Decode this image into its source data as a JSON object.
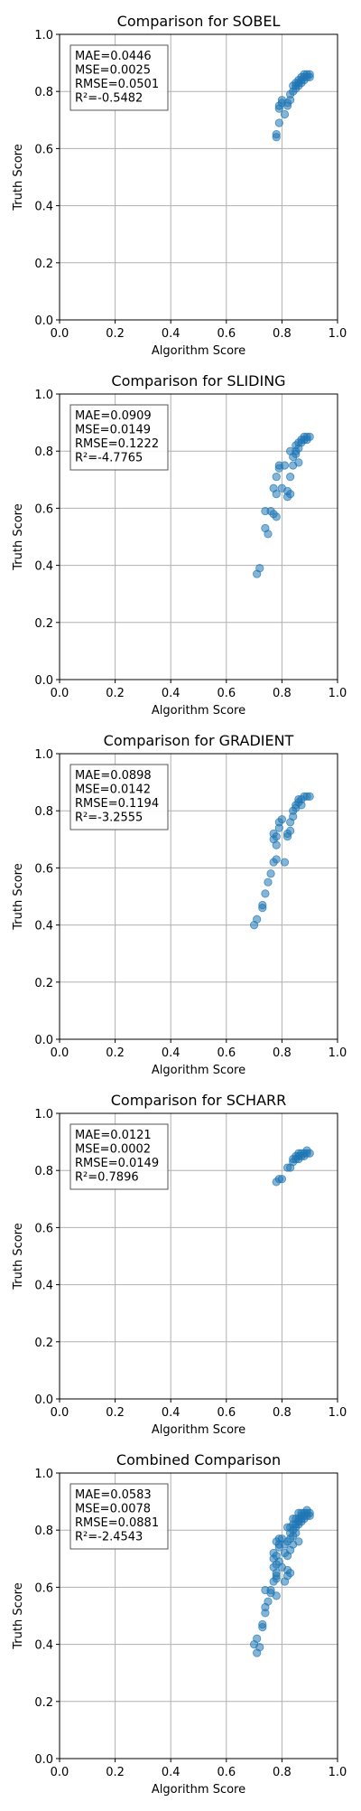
{
  "chart_data": [
    {
      "type": "scatter",
      "title": "Comparison for SOBEL",
      "xlabel": "Algorithm Score",
      "ylabel": "Truth Score",
      "xlim": [
        0,
        1
      ],
      "ylim": [
        0,
        1
      ],
      "xticks": [
        "0.0",
        "0.2",
        "0.4",
        "0.6",
        "0.8",
        "1.0"
      ],
      "yticks": [
        "0.0",
        "0.2",
        "0.4",
        "0.6",
        "0.8",
        "1.0"
      ],
      "grid": true,
      "color": "#1f77b4",
      "stats": [
        "MAE=0.0446",
        "MSE=0.0025",
        "RMSE=0.0501",
        "R²=-0.5482"
      ],
      "points": [
        [
          0.78,
          0.64
        ],
        [
          0.78,
          0.65
        ],
        [
          0.79,
          0.69
        ],
        [
          0.79,
          0.74
        ],
        [
          0.79,
          0.75
        ],
        [
          0.8,
          0.76
        ],
        [
          0.8,
          0.77
        ],
        [
          0.81,
          0.72
        ],
        [
          0.82,
          0.75
        ],
        [
          0.82,
          0.76
        ],
        [
          0.83,
          0.77
        ],
        [
          0.83,
          0.79
        ],
        [
          0.84,
          0.8
        ],
        [
          0.84,
          0.82
        ],
        [
          0.85,
          0.81
        ],
        [
          0.85,
          0.82
        ],
        [
          0.86,
          0.82
        ],
        [
          0.86,
          0.83
        ],
        [
          0.87,
          0.83
        ],
        [
          0.87,
          0.84
        ],
        [
          0.88,
          0.84
        ],
        [
          0.88,
          0.85
        ],
        [
          0.89,
          0.85
        ],
        [
          0.89,
          0.86
        ],
        [
          0.9,
          0.85
        ],
        [
          0.9,
          0.86
        ],
        [
          0.88,
          0.86
        ],
        [
          0.87,
          0.85
        ],
        [
          0.86,
          0.84
        ],
        [
          0.85,
          0.83
        ]
      ]
    },
    {
      "type": "scatter",
      "title": "Comparison for SLIDING",
      "xlabel": "Algorithm Score",
      "ylabel": "Truth Score",
      "xlim": [
        0,
        1
      ],
      "ylim": [
        0,
        1
      ],
      "xticks": [
        "0.0",
        "0.2",
        "0.4",
        "0.6",
        "0.8",
        "1.0"
      ],
      "yticks": [
        "0.0",
        "0.2",
        "0.4",
        "0.6",
        "0.8",
        "1.0"
      ],
      "grid": true,
      "color": "#1f77b4",
      "stats": [
        "MAE=0.0909",
        "MSE=0.0149",
        "RMSE=0.1222",
        "R²=-4.7765"
      ],
      "points": [
        [
          0.71,
          0.37
        ],
        [
          0.72,
          0.39
        ],
        [
          0.74,
          0.53
        ],
        [
          0.75,
          0.51
        ],
        [
          0.74,
          0.59
        ],
        [
          0.76,
          0.59
        ],
        [
          0.77,
          0.58
        ],
        [
          0.78,
          0.57
        ],
        [
          0.77,
          0.67
        ],
        [
          0.78,
          0.65
        ],
        [
          0.78,
          0.71
        ],
        [
          0.79,
          0.74
        ],
        [
          0.79,
          0.75
        ],
        [
          0.8,
          0.67
        ],
        [
          0.81,
          0.75
        ],
        [
          0.82,
          0.66
        ],
        [
          0.82,
          0.64
        ],
        [
          0.83,
          0.65
        ],
        [
          0.83,
          0.71
        ],
        [
          0.84,
          0.75
        ],
        [
          0.84,
          0.78
        ],
        [
          0.85,
          0.79
        ],
        [
          0.85,
          0.8
        ],
        [
          0.85,
          0.82
        ],
        [
          0.86,
          0.81
        ],
        [
          0.86,
          0.83
        ],
        [
          0.87,
          0.83
        ],
        [
          0.87,
          0.84
        ],
        [
          0.88,
          0.84
        ],
        [
          0.88,
          0.85
        ],
        [
          0.89,
          0.85
        ],
        [
          0.89,
          0.84
        ],
        [
          0.9,
          0.85
        ],
        [
          0.83,
          0.8
        ],
        [
          0.86,
          0.76
        ]
      ]
    },
    {
      "type": "scatter",
      "title": "Comparison for GRADIENT",
      "xlabel": "Algorithm Score",
      "ylabel": "Truth Score",
      "xlim": [
        0,
        1
      ],
      "ylim": [
        0,
        1
      ],
      "xticks": [
        "0.0",
        "0.2",
        "0.4",
        "0.6",
        "0.8",
        "1.0"
      ],
      "yticks": [
        "0.0",
        "0.2",
        "0.4",
        "0.6",
        "0.8",
        "1.0"
      ],
      "grid": true,
      "color": "#1f77b4",
      "stats": [
        "MAE=0.0898",
        "MSE=0.0142",
        "RMSE=0.1194",
        "R²=-3.2555"
      ],
      "points": [
        [
          0.7,
          0.4
        ],
        [
          0.71,
          0.42
        ],
        [
          0.73,
          0.46
        ],
        [
          0.73,
          0.47
        ],
        [
          0.74,
          0.51
        ],
        [
          0.75,
          0.55
        ],
        [
          0.76,
          0.58
        ],
        [
          0.77,
          0.62
        ],
        [
          0.78,
          0.63
        ],
        [
          0.78,
          0.68
        ],
        [
          0.77,
          0.7
        ],
        [
          0.77,
          0.72
        ],
        [
          0.78,
          0.71
        ],
        [
          0.79,
          0.74
        ],
        [
          0.79,
          0.76
        ],
        [
          0.8,
          0.77
        ],
        [
          0.81,
          0.62
        ],
        [
          0.82,
          0.71
        ],
        [
          0.82,
          0.72
        ],
        [
          0.83,
          0.73
        ],
        [
          0.83,
          0.76
        ],
        [
          0.84,
          0.78
        ],
        [
          0.84,
          0.8
        ],
        [
          0.85,
          0.81
        ],
        [
          0.85,
          0.82
        ],
        [
          0.86,
          0.83
        ],
        [
          0.86,
          0.84
        ],
        [
          0.87,
          0.84
        ],
        [
          0.88,
          0.85
        ],
        [
          0.89,
          0.85
        ],
        [
          0.9,
          0.85
        ],
        [
          0.87,
          0.82
        ]
      ]
    },
    {
      "type": "scatter",
      "title": "Comparison for SCHARR",
      "xlabel": "Algorithm Score",
      "ylabel": "Truth Score",
      "xlim": [
        0,
        1
      ],
      "ylim": [
        0,
        1
      ],
      "xticks": [
        "0.0",
        "0.2",
        "0.4",
        "0.6",
        "0.8",
        "1.0"
      ],
      "yticks": [
        "0.0",
        "0.2",
        "0.4",
        "0.6",
        "0.8",
        "1.0"
      ],
      "grid": true,
      "color": "#1f77b4",
      "stats": [
        "MAE=0.0121",
        "MSE=0.0002",
        "RMSE=0.0149",
        "R²=0.7896"
      ],
      "points": [
        [
          0.78,
          0.76
        ],
        [
          0.79,
          0.77
        ],
        [
          0.8,
          0.77
        ],
        [
          0.82,
          0.81
        ],
        [
          0.83,
          0.81
        ],
        [
          0.84,
          0.83
        ],
        [
          0.85,
          0.84
        ],
        [
          0.85,
          0.85
        ],
        [
          0.86,
          0.84
        ],
        [
          0.86,
          0.85
        ],
        [
          0.87,
          0.85
        ],
        [
          0.87,
          0.86
        ],
        [
          0.88,
          0.85
        ],
        [
          0.88,
          0.86
        ],
        [
          0.89,
          0.86
        ],
        [
          0.89,
          0.87
        ],
        [
          0.9,
          0.86
        ],
        [
          0.84,
          0.84
        ],
        [
          0.86,
          0.86
        ]
      ]
    },
    {
      "type": "scatter",
      "title": "Combined Comparison",
      "xlabel": "Algorithm Score",
      "ylabel": "Truth Score",
      "xlim": [
        0,
        1
      ],
      "ylim": [
        0,
        1
      ],
      "xticks": [
        "0.0",
        "0.2",
        "0.4",
        "0.6",
        "0.8",
        "1.0"
      ],
      "yticks": [
        "0.0",
        "0.2",
        "0.4",
        "0.6",
        "0.8",
        "1.0"
      ],
      "grid": true,
      "color": "#1f77b4",
      "stats": [
        "MAE=0.0583",
        "MSE=0.0078",
        "RMSE=0.0881",
        "R²=-2.4543"
      ],
      "points": [
        [
          0.7,
          0.4
        ],
        [
          0.71,
          0.37
        ],
        [
          0.71,
          0.42
        ],
        [
          0.72,
          0.39
        ],
        [
          0.73,
          0.46
        ],
        [
          0.73,
          0.47
        ],
        [
          0.74,
          0.51
        ],
        [
          0.74,
          0.53
        ],
        [
          0.74,
          0.59
        ],
        [
          0.75,
          0.55
        ],
        [
          0.76,
          0.58
        ],
        [
          0.76,
          0.59
        ],
        [
          0.77,
          0.62
        ],
        [
          0.77,
          0.67
        ],
        [
          0.77,
          0.7
        ],
        [
          0.77,
          0.72
        ],
        [
          0.78,
          0.57
        ],
        [
          0.78,
          0.63
        ],
        [
          0.78,
          0.64
        ],
        [
          0.78,
          0.65
        ],
        [
          0.78,
          0.68
        ],
        [
          0.78,
          0.71
        ],
        [
          0.78,
          0.76
        ],
        [
          0.79,
          0.69
        ],
        [
          0.79,
          0.74
        ],
        [
          0.79,
          0.75
        ],
        [
          0.79,
          0.77
        ],
        [
          0.8,
          0.67
        ],
        [
          0.8,
          0.77
        ],
        [
          0.81,
          0.62
        ],
        [
          0.81,
          0.72
        ],
        [
          0.81,
          0.75
        ],
        [
          0.82,
          0.64
        ],
        [
          0.82,
          0.66
        ],
        [
          0.82,
          0.71
        ],
        [
          0.82,
          0.76
        ],
        [
          0.82,
          0.81
        ],
        [
          0.83,
          0.65
        ],
        [
          0.83,
          0.73
        ],
        [
          0.83,
          0.77
        ],
        [
          0.83,
          0.79
        ],
        [
          0.83,
          0.81
        ],
        [
          0.84,
          0.75
        ],
        [
          0.84,
          0.78
        ],
        [
          0.84,
          0.8
        ],
        [
          0.84,
          0.82
        ],
        [
          0.84,
          0.84
        ],
        [
          0.85,
          0.79
        ],
        [
          0.85,
          0.81
        ],
        [
          0.85,
          0.82
        ],
        [
          0.85,
          0.84
        ],
        [
          0.86,
          0.76
        ],
        [
          0.86,
          0.82
        ],
        [
          0.86,
          0.83
        ],
        [
          0.86,
          0.84
        ],
        [
          0.86,
          0.86
        ],
        [
          0.87,
          0.83
        ],
        [
          0.87,
          0.84
        ],
        [
          0.87,
          0.85
        ],
        [
          0.87,
          0.86
        ],
        [
          0.88,
          0.84
        ],
        [
          0.88,
          0.85
        ],
        [
          0.88,
          0.86
        ],
        [
          0.89,
          0.85
        ],
        [
          0.89,
          0.86
        ],
        [
          0.89,
          0.87
        ],
        [
          0.9,
          0.85
        ],
        [
          0.9,
          0.86
        ]
      ]
    }
  ]
}
